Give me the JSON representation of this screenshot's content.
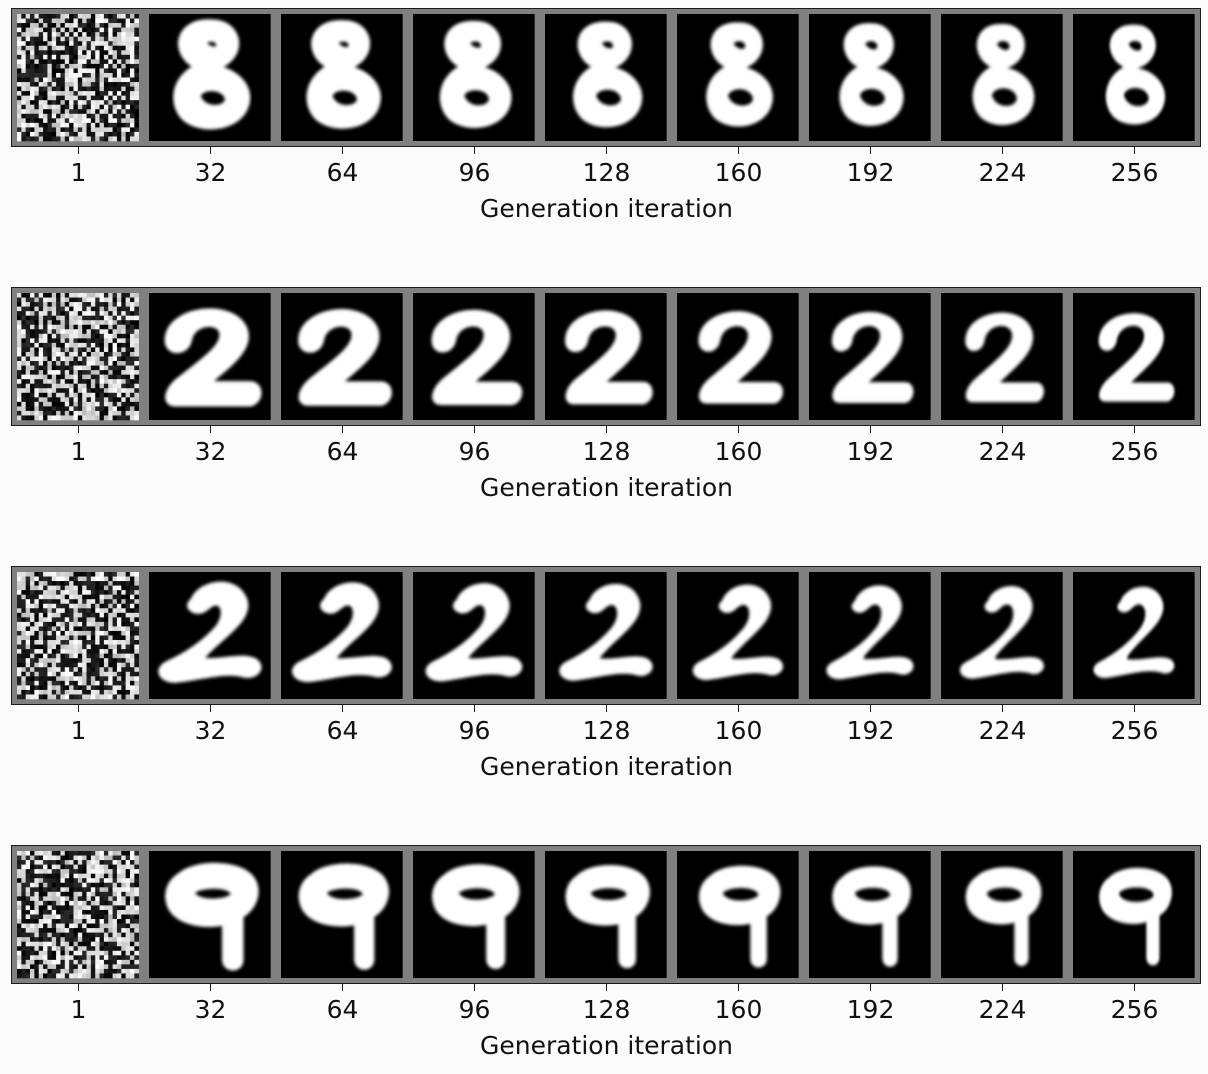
{
  "figure": {
    "xlabel": "Generation iteration",
    "ticks": [
      "1",
      "32",
      "64",
      "96",
      "128",
      "160",
      "192",
      "224",
      "256"
    ],
    "rows": [
      {
        "digit": "8"
      },
      {
        "digit": "2"
      },
      {
        "digit": "2"
      },
      {
        "digit": "9"
      }
    ]
  },
  "colors": {
    "frame": "#808080",
    "cell_background": "#000000",
    "stroke": "#ffffff",
    "axis": "#1a1a1a"
  }
}
